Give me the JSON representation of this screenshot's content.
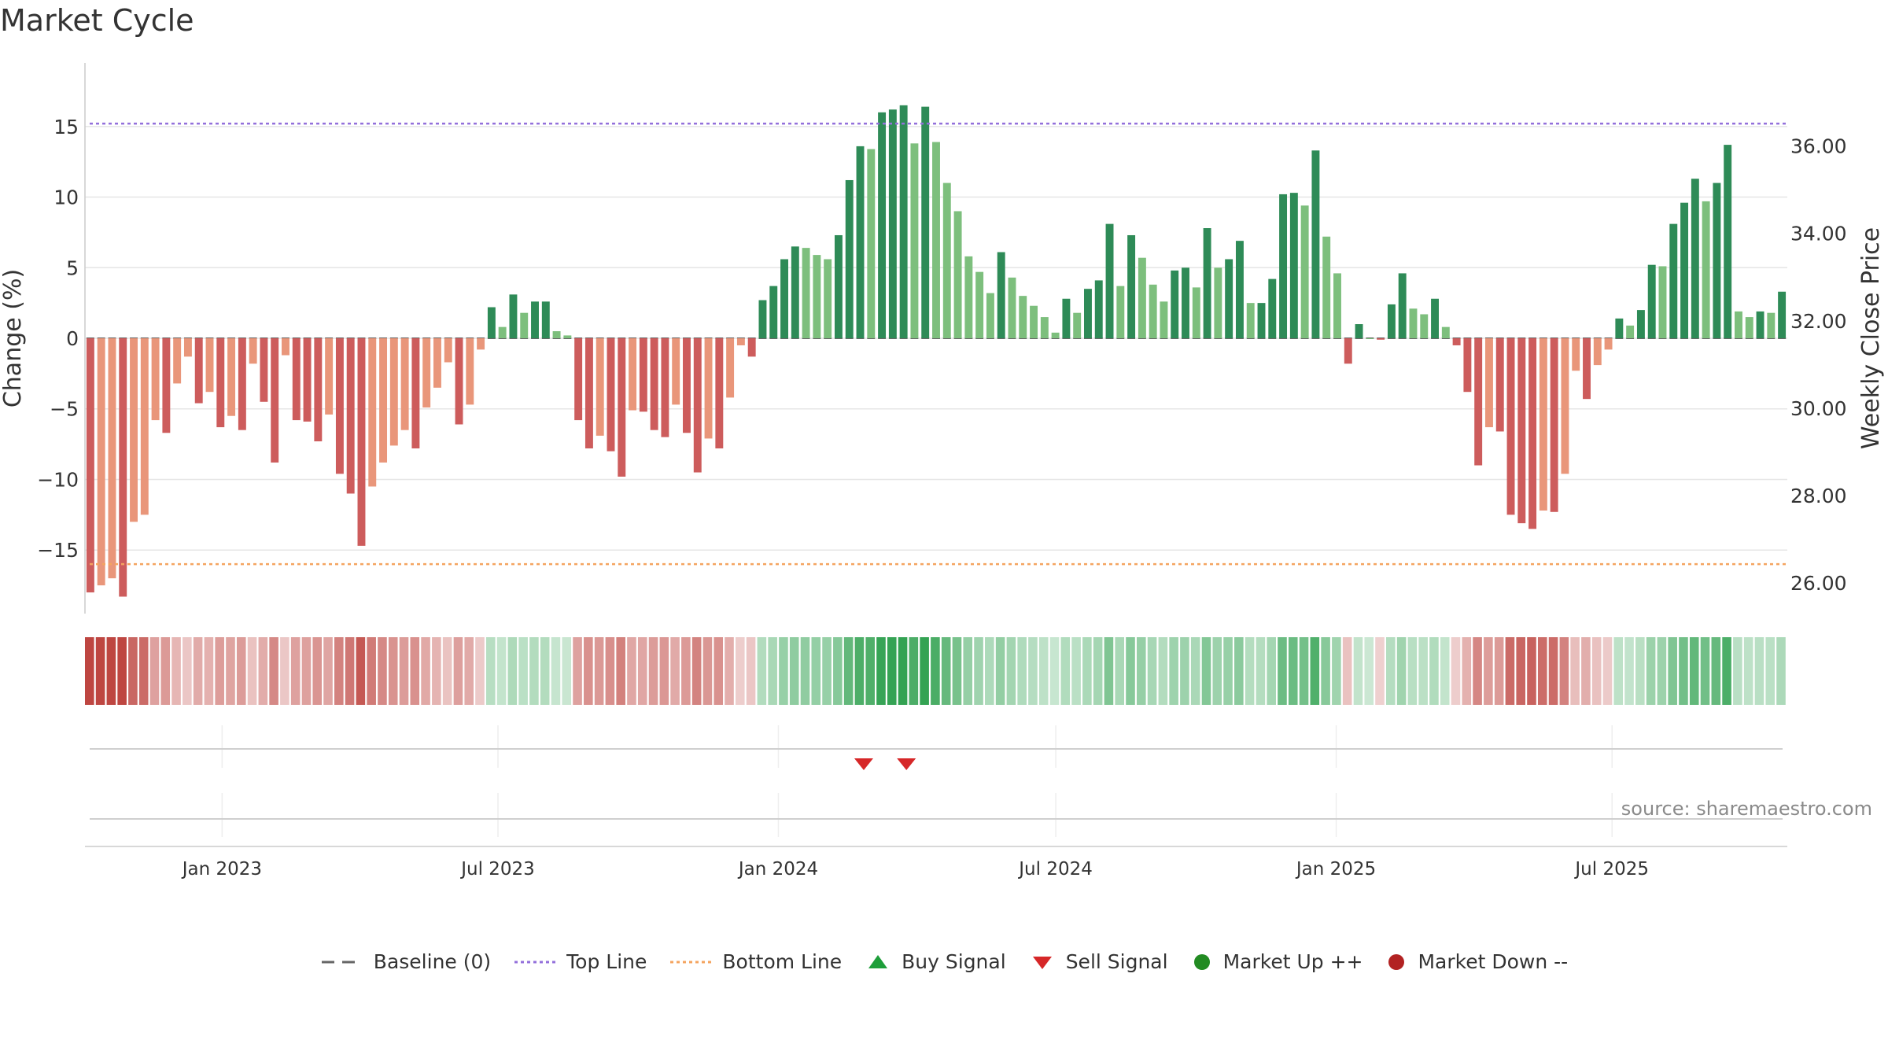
{
  "title": "Market Cycle",
  "source": "source: sharemaestro.com",
  "colors": {
    "strong_up": "#2e8b57",
    "weak_up": "#7dbf7d",
    "strong_down": "#cd5c5c",
    "weak_down": "#e9967a",
    "top_line": "#9370db",
    "bottom_line": "#f4a460",
    "baseline": "#666666",
    "sell_signal": "#d62728",
    "buy_signal": "#1e9e3a",
    "market_up": "#228b22",
    "market_down": "#b22222"
  },
  "legend": [
    {
      "label": "Baseline (0)",
      "icon": "dash-line"
    },
    {
      "label": "Top Line",
      "icon": "dotted-purple-line"
    },
    {
      "label": "Bottom Line",
      "icon": "dotted-orange-line"
    },
    {
      "label": "Buy Signal",
      "icon": "triangle-up"
    },
    {
      "label": "Sell Signal",
      "icon": "triangle-down"
    },
    {
      "label": "Market Up ++",
      "icon": "green-dot"
    },
    {
      "label": "Market Down --",
      "icon": "red-dot"
    }
  ],
  "chart_data": {
    "type": "bar",
    "ylabel": "Change (%)",
    "y2label": "Weekly Close Price",
    "ylim": [
      -19.5,
      19.5
    ],
    "y2lim": [
      25.3,
      37.9
    ],
    "yticks": [
      15,
      10,
      5,
      0,
      -5,
      -10,
      -15
    ],
    "ytick_labels": [
      "15",
      "10",
      "5",
      "0",
      "−5",
      "−10",
      "−15"
    ],
    "y2ticks": [
      36,
      34,
      32,
      30,
      28,
      26
    ],
    "y2tick_labels": [
      "36.00",
      "34.00",
      "32.00",
      "30.00",
      "28.00",
      "26.00"
    ],
    "top_line": 15.2,
    "bottom_line": -16,
    "x_start": "2022-10-03",
    "x_end": "2025-10-24",
    "xticks": [
      "2023-01-01",
      "2023-07-01",
      "2024-01-01",
      "2024-07-01",
      "2025-01-01",
      "2025-07-01"
    ],
    "xtick_labels": [
      "Jan 2023",
      "Jul 2023",
      "Jan 2024",
      "Jul 2024",
      "Jan 2025",
      "Jul 2025"
    ],
    "sell_signals": [
      "2024-02-26",
      "2024-03-25"
    ],
    "buy_signals": [],
    "values": [
      -18,
      -17.5,
      -17,
      -18.3,
      -13,
      -12.5,
      -5.8,
      -6.7,
      -3.2,
      -1.3,
      -4.6,
      -3.8,
      -6.3,
      -5.5,
      -6.5,
      -1.8,
      -4.5,
      -8.8,
      -1.2,
      -5.8,
      -5.9,
      -7.3,
      -5.4,
      -9.6,
      -11,
      -14.7,
      -10.5,
      -8.8,
      -7.6,
      -6.5,
      -7.8,
      -4.9,
      -3.5,
      -1.7,
      -6.1,
      -4.7,
      -0.8,
      2.2,
      0.8,
      3.1,
      1.8,
      2.6,
      2.6,
      0.5,
      0.2,
      -5.8,
      -7.8,
      -6.9,
      -8,
      -9.8,
      -5.1,
      -5.2,
      -6.5,
      -7,
      -4.7,
      -6.7,
      -9.5,
      -7.1,
      -7.8,
      -4.2,
      -0.5,
      -1.3,
      2.7,
      3.7,
      5.6,
      6.5,
      6.4,
      5.9,
      5.6,
      7.3,
      11.2,
      13.6,
      13.4,
      16,
      16.2,
      16.5,
      13.8,
      16.4,
      13.9,
      11,
      9,
      5.8,
      4.7,
      3.2,
      6.1,
      4.3,
      3,
      2.3,
      1.5,
      0.4,
      2.8,
      1.8,
      3.5,
      4.1,
      8.1,
      3.7,
      7.3,
      5.7,
      3.8,
      2.6,
      4.8,
      5,
      3.6,
      7.8,
      5,
      5.6,
      6.9,
      2.5,
      2.5,
      4.2,
      10.2,
      10.3,
      9.4,
      13.3,
      7.2,
      4.6,
      -1.8,
      1,
      0,
      -0.1,
      2.4,
      4.6,
      2.1,
      1.7,
      2.8,
      0.8,
      -0.5,
      -3.8,
      -9,
      -6.3,
      -6.6,
      -12.5,
      -13.1,
      -13.5,
      -12.2,
      -12.3,
      -9.6,
      -2.3,
      -4.3,
      -1.9,
      -0.8,
      1.4,
      0.9,
      2,
      5.2,
      5.1,
      8.1,
      9.6,
      11.3,
      9.7,
      11,
      13.7,
      1.9,
      1.5,
      1.9,
      1.8,
      3.3
    ]
  }
}
